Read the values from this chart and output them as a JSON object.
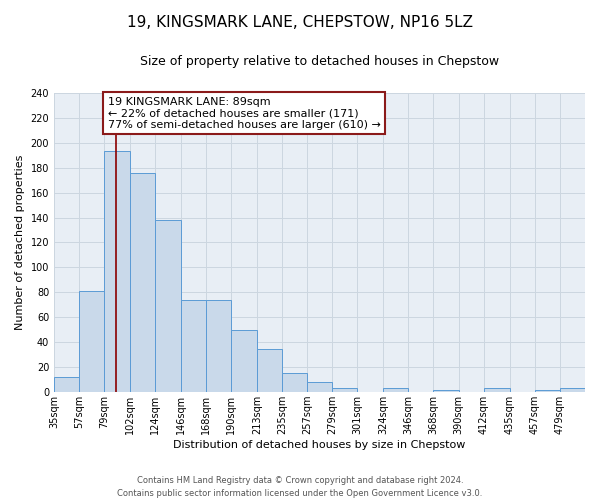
{
  "title": "19, KINGSMARK LANE, CHEPSTOW, NP16 5LZ",
  "subtitle": "Size of property relative to detached houses in Chepstow",
  "xlabel": "Distribution of detached houses by size in Chepstow",
  "ylabel": "Number of detached properties",
  "bar_values": [
    12,
    81,
    193,
    176,
    138,
    74,
    74,
    50,
    35,
    15,
    8,
    3,
    0,
    3,
    0,
    2,
    0,
    3,
    0,
    2,
    3
  ],
  "bin_labels": [
    "35sqm",
    "57sqm",
    "79sqm",
    "102sqm",
    "124sqm",
    "146sqm",
    "168sqm",
    "190sqm",
    "213sqm",
    "235sqm",
    "257sqm",
    "279sqm",
    "301sqm",
    "324sqm",
    "346sqm",
    "368sqm",
    "390sqm",
    "412sqm",
    "435sqm",
    "457sqm",
    "479sqm"
  ],
  "bin_edges": [
    35,
    57,
    79,
    102,
    124,
    146,
    168,
    190,
    213,
    235,
    257,
    279,
    301,
    324,
    346,
    368,
    390,
    412,
    435,
    457,
    479,
    501
  ],
  "bar_facecolor": "#c9d9ea",
  "bar_edgecolor": "#5b9bd5",
  "red_line_x": 89,
  "annotation_line1": "19 KINGSMARK LANE: 89sqm",
  "annotation_line2": "← 22% of detached houses are smaller (171)",
  "annotation_line3": "77% of semi-detached houses are larger (610) →",
  "ylim": [
    0,
    240
  ],
  "yticks": [
    0,
    20,
    40,
    60,
    80,
    100,
    120,
    140,
    160,
    180,
    200,
    220,
    240
  ],
  "grid_color": "#ccd6e0",
  "background_color": "#e8eef5",
  "footer_line1": "Contains HM Land Registry data © Crown copyright and database right 2024.",
  "footer_line2": "Contains public sector information licensed under the Open Government Licence v3.0.",
  "title_fontsize": 11,
  "subtitle_fontsize": 9,
  "axis_label_fontsize": 8,
  "tick_fontsize": 7,
  "annotation_fontsize": 8,
  "footer_fontsize": 6
}
